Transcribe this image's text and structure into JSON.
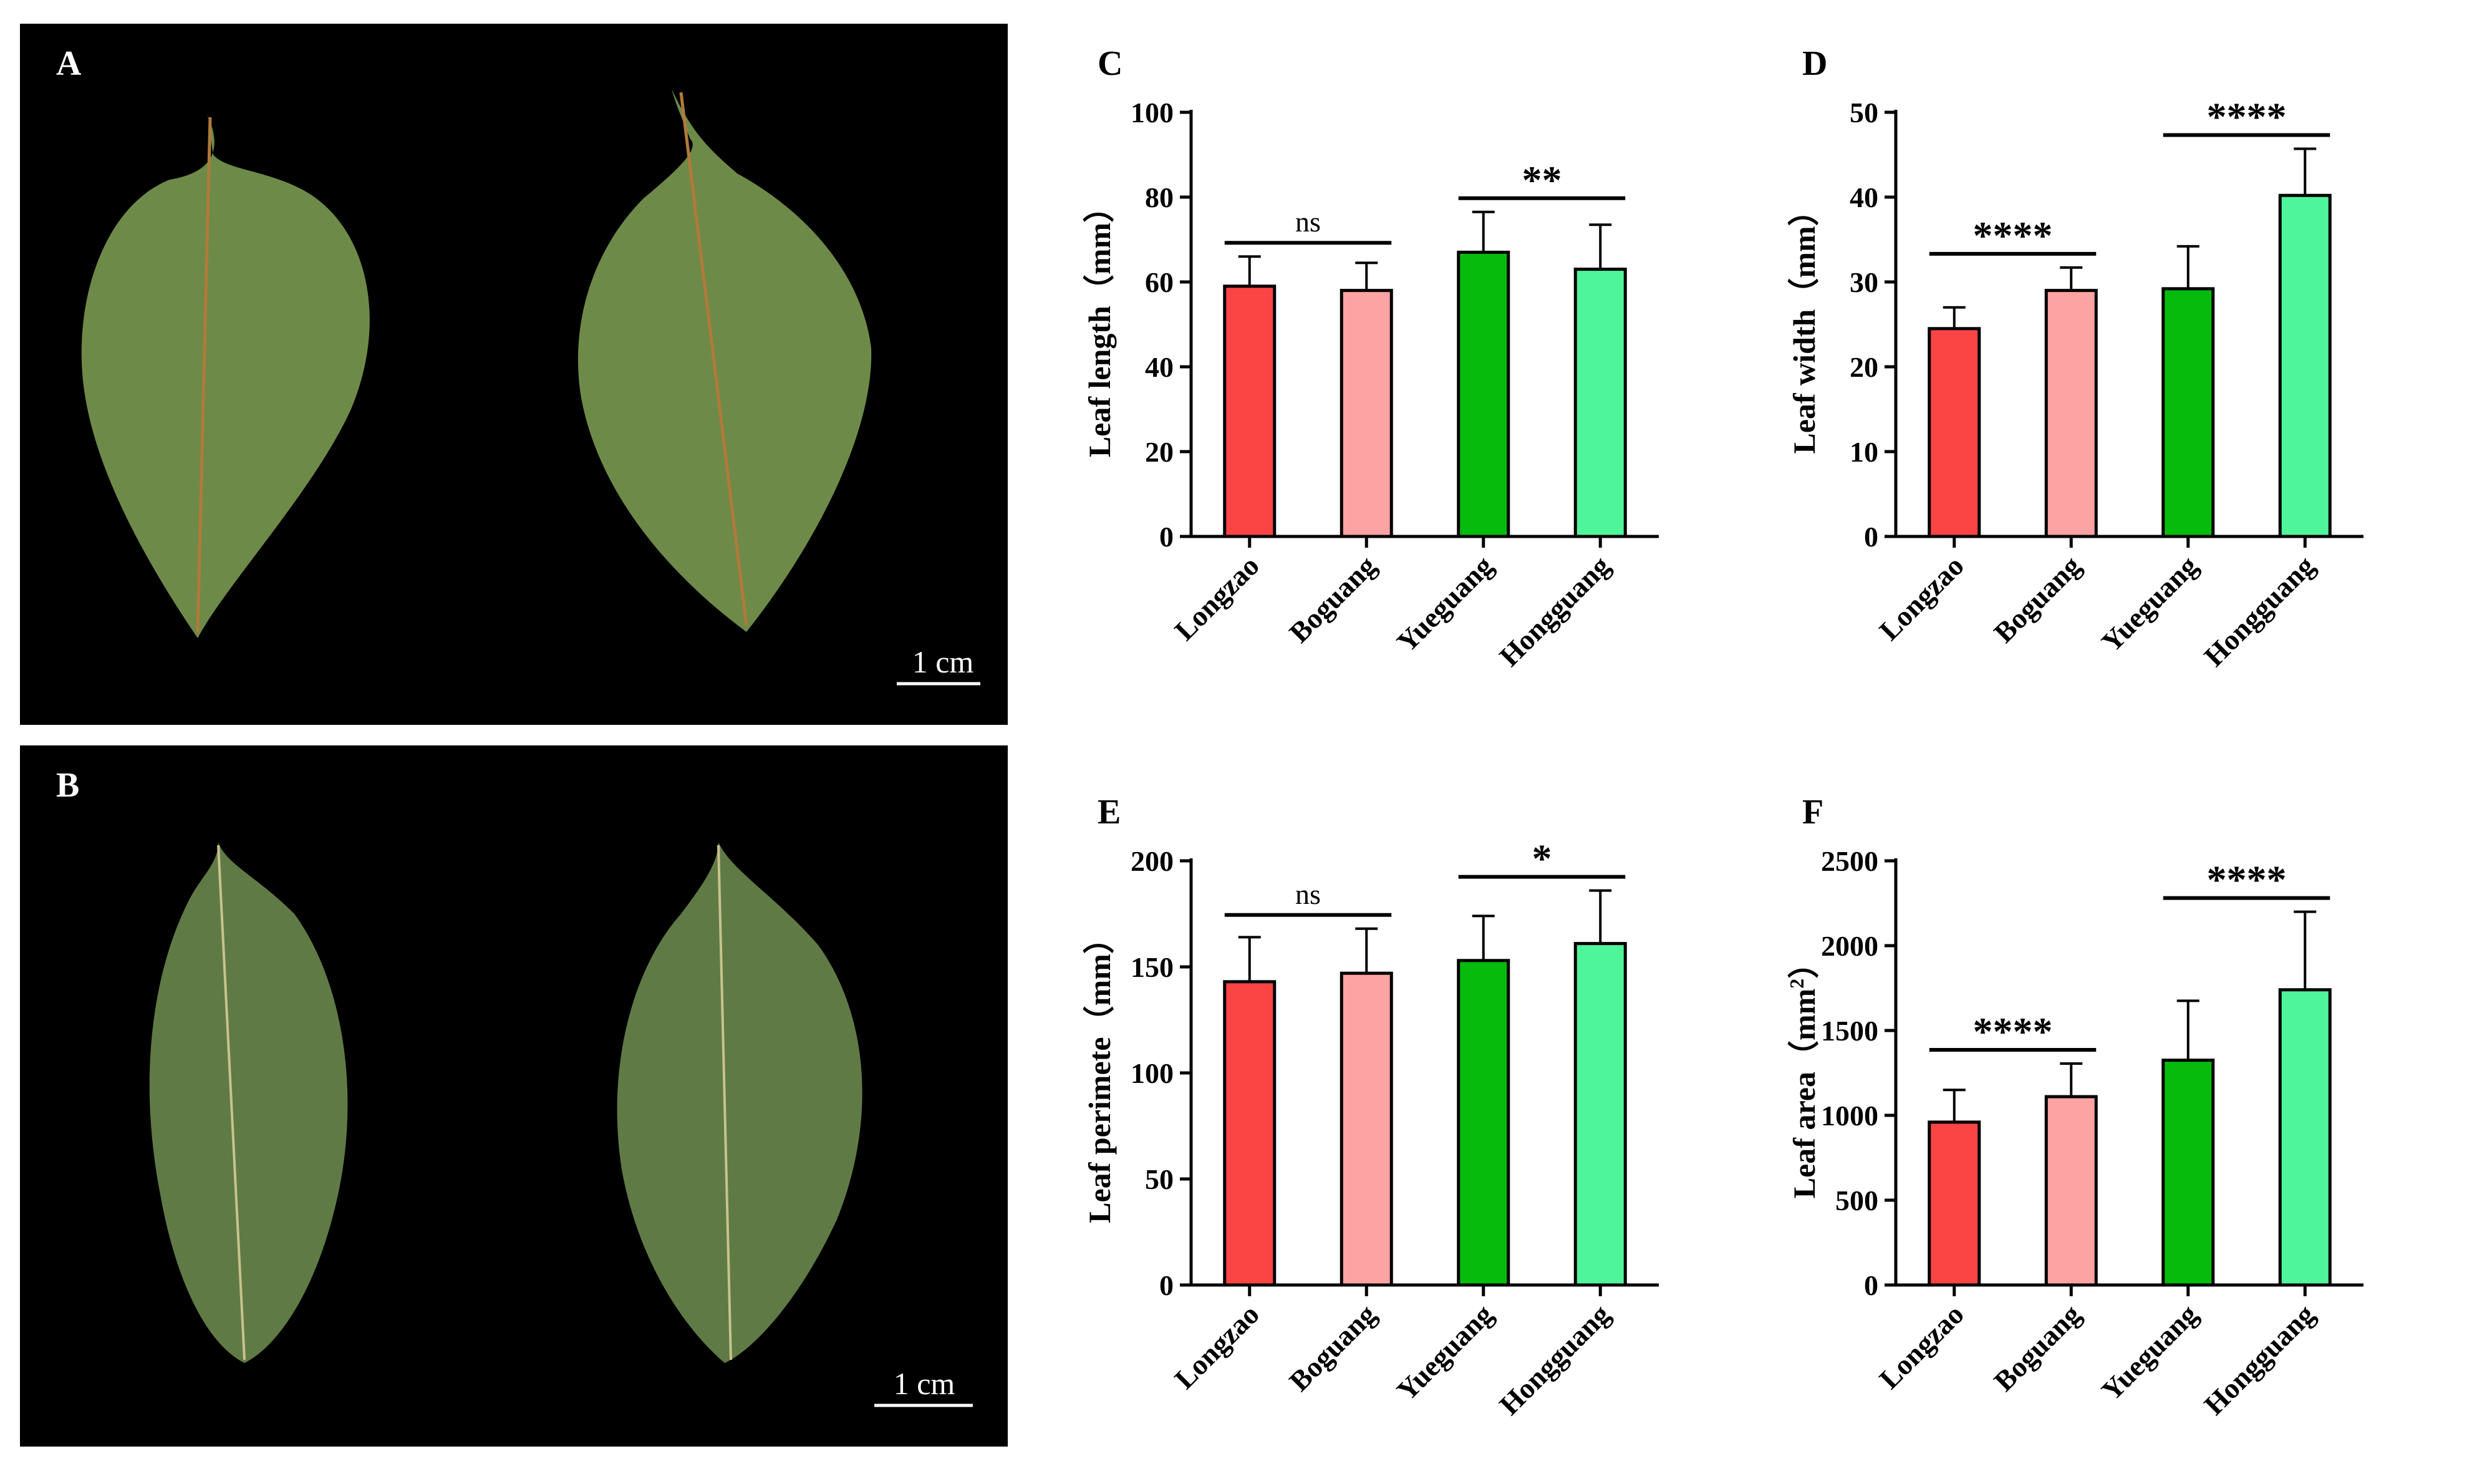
{
  "photos": [
    {
      "letter": "A",
      "scale_bar": "1 cm"
    },
    {
      "letter": "B",
      "scale_bar": "1 cm"
    }
  ],
  "colors": {
    "Longzao": "#fb4444",
    "Boguang": "#fda3a3",
    "Yueguang": "#05bb0c",
    "Hongguang": "#4ff59b",
    "leaf_A": "#6e8a48",
    "leaf_B": "#607a45",
    "photo_bg": "#000000"
  },
  "chart_data": [
    {
      "panel": "C",
      "type": "bar",
      "categories": [
        "Longzao",
        "Boguang",
        "Yueguang",
        "Hongguang"
      ],
      "values": [
        59,
        58,
        67,
        63
      ],
      "errors": [
        7,
        6.5,
        9.5,
        10.5
      ],
      "ylabel": "Leaf length（mm）",
      "ylim": [
        0,
        100
      ],
      "yticks": [
        "0",
        "20",
        "40",
        "60",
        "80",
        "100"
      ],
      "significance": [
        {
          "from": 0,
          "to": 1,
          "label": "ns"
        },
        {
          "from": 2,
          "to": 3,
          "label": "**"
        }
      ]
    },
    {
      "panel": "D",
      "type": "bar",
      "categories": [
        "Longzao",
        "Boguang",
        "Yueguang",
        "Hongguang"
      ],
      "values": [
        24.5,
        29,
        29.2,
        40.2
      ],
      "errors": [
        2.5,
        2.7,
        5,
        5.5
      ],
      "ylabel": "Leaf width（mm）",
      "ylim": [
        0,
        50
      ],
      "yticks": [
        "0",
        "10",
        "20",
        "30",
        "40",
        "50"
      ],
      "significance": [
        {
          "from": 0,
          "to": 1,
          "label": "****"
        },
        {
          "from": 2,
          "to": 3,
          "label": "****"
        }
      ]
    },
    {
      "panel": "E",
      "type": "bar",
      "categories": [
        "Longzao",
        "Boguang",
        "Yueguang",
        "Hongguang"
      ],
      "values": [
        143,
        147,
        153,
        161
      ],
      "errors": [
        21,
        21,
        21,
        25
      ],
      "ylabel": "Leaf perimete（mm）",
      "ylim": [
        0,
        200
      ],
      "yticks": [
        "0",
        "50",
        "100",
        "150",
        "200"
      ],
      "significance": [
        {
          "from": 0,
          "to": 1,
          "label": "ns"
        },
        {
          "from": 2,
          "to": 3,
          "label": "*"
        }
      ]
    },
    {
      "panel": "F",
      "type": "bar",
      "categories": [
        "Longzao",
        "Boguang",
        "Yueguang",
        "Hongguang"
      ],
      "values": [
        960,
        1110,
        1325,
        1740
      ],
      "errors": [
        190,
        195,
        350,
        460
      ],
      "ylabel": "Leaf area（mm",
      "ylabel_sup": "2",
      "ylabel_end": "）",
      "ylim": [
        0,
        2500
      ],
      "yticks": [
        "0",
        "500",
        "1000",
        "1500",
        "2000",
        "2500"
      ],
      "significance": [
        {
          "from": 0,
          "to": 1,
          "label": "****"
        },
        {
          "from": 2,
          "to": 3,
          "label": "****"
        }
      ]
    }
  ]
}
